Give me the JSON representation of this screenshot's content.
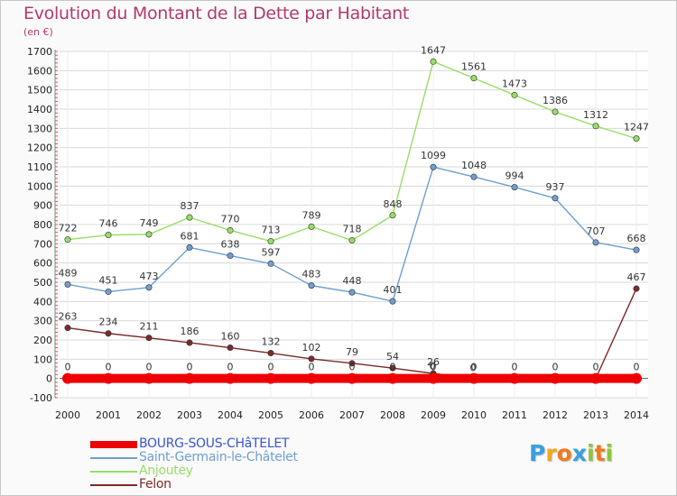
{
  "header": {
    "title": "Evolution du Montant de la Dette par Habitant",
    "unit": "(en €)"
  },
  "colors": {
    "title": "#b23a6a",
    "grid": "#d8d8d8",
    "zero_line": "#555555",
    "tick_marks": "#e05060"
  },
  "chart_data": {
    "type": "line",
    "title": "Evolution du Montant de la Dette par Habitant",
    "ylabel": "(en €)",
    "xlabel": "",
    "x": [
      "2000",
      "2001",
      "2002",
      "2003",
      "2004",
      "2005",
      "2006",
      "2007",
      "2008",
      "2009",
      "2010",
      "2011",
      "2012",
      "2013",
      "2014"
    ],
    "ylim": [
      -100,
      1700
    ],
    "yticks": [
      -100,
      0,
      100,
      200,
      300,
      400,
      500,
      600,
      700,
      800,
      900,
      1000,
      1100,
      1200,
      1300,
      1400,
      1500,
      1600,
      1700
    ],
    "grid": true,
    "legend_position": "bottom-left",
    "series": [
      {
        "name": "BOURG-SOUS-CHâTELET",
        "color": "#ee0000",
        "label_color": "#3a55cc",
        "values": [
          0,
          0,
          0,
          0,
          0,
          0,
          0,
          0,
          0,
          0,
          0,
          0,
          0,
          0,
          0
        ],
        "labels": [
          "0",
          "0",
          "0",
          "0",
          "0",
          "0",
          "0",
          "0",
          "0",
          "0",
          "0",
          "0",
          "0",
          "0",
          "0"
        ]
      },
      {
        "name": "Saint-Germain-le-Châtelet",
        "color": "#6f9fd1",
        "label_color": "#6f9fd1",
        "values": [
          489,
          451,
          473,
          681,
          638,
          597,
          483,
          448,
          401,
          1099,
          1048,
          994,
          937,
          707,
          668
        ],
        "labels": [
          "489",
          "451",
          "473",
          "681",
          "638",
          "597",
          "483",
          "448",
          "401",
          "1099",
          "1048",
          "994",
          "937",
          "707",
          "668"
        ]
      },
      {
        "name": "Anjoutey",
        "color": "#99dd66",
        "label_color": "#99dd66",
        "values": [
          722,
          746,
          749,
          837,
          770,
          713,
          789,
          718,
          848,
          1647,
          1561,
          1473,
          1386,
          1312,
          1247
        ],
        "labels": [
          "722",
          "746",
          "749",
          "837",
          "770",
          "713",
          "789",
          "718",
          "848",
          "1647",
          "1561",
          "1473",
          "1386",
          "1312",
          "1247"
        ]
      },
      {
        "name": "Felon",
        "color": "#7a2a2a",
        "label_color": "#7a2a2a",
        "values": [
          263,
          234,
          211,
          186,
          160,
          132,
          102,
          79,
          54,
          26,
          0,
          0,
          0,
          0,
          467
        ],
        "labels": [
          "263",
          "234",
          "211",
          "186",
          "160",
          "132",
          "102",
          "79",
          "54",
          "26",
          "0",
          "0",
          "0",
          "0",
          "467"
        ]
      }
    ],
    "overlay_labels": [
      {
        "text": "0",
        "x_index": 9
      },
      {
        "text": "0",
        "x_index": 10
      }
    ]
  },
  "logo": {
    "letters": [
      "P",
      "r",
      "o",
      "x",
      "i",
      "t",
      "i"
    ],
    "colors": [
      "#3aa0e0",
      "#f2a81d",
      "#f07b1d",
      "#3aa0e0",
      "#8cc63f",
      "#f07b1d",
      "#8cc63f"
    ]
  }
}
